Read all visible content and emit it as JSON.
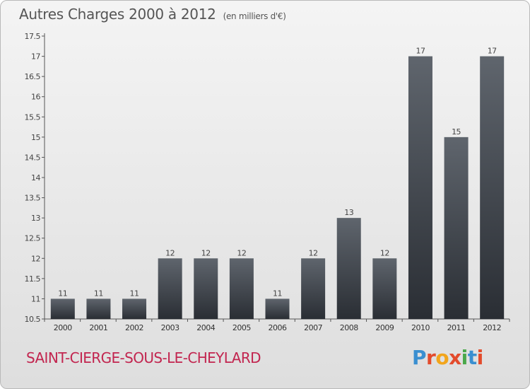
{
  "header": {
    "title": "Autres Charges 2000 à 2012",
    "unit": "(en milliers d'€)"
  },
  "footer": {
    "commune": "SAINT-CIERGE-SOUS-LE-CHEYLARD",
    "logo": "Proxiti"
  },
  "colors": {
    "bar_top": "#5f656d",
    "bar_bottom": "#2a2e34",
    "commune": "#c2254f",
    "logo_letters": [
      "#3a8fd0",
      "#e34b2c",
      "#f2a51c",
      "#e34b2c",
      "#4aa84a",
      "#3a8fd0",
      "#e34b2c"
    ]
  },
  "chart_data": {
    "type": "bar",
    "categories": [
      "2000",
      "2001",
      "2002",
      "2003",
      "2004",
      "2005",
      "2006",
      "2007",
      "2008",
      "2009",
      "2010",
      "2011",
      "2012"
    ],
    "values": [
      11,
      11,
      11,
      12,
      12,
      12,
      11,
      12,
      13,
      12,
      17,
      15,
      17
    ],
    "data_labels": [
      "11",
      "11",
      "11",
      "12",
      "12",
      "12",
      "11",
      "12",
      "13",
      "12",
      "17",
      "15",
      "17"
    ],
    "yticks": [
      "10.5",
      "11",
      "11.5",
      "12",
      "12.5",
      "13",
      "13.5",
      "14",
      "14.5",
      "15",
      "15.5",
      "16",
      "16.5",
      "17",
      "17.5"
    ],
    "ylim": [
      10.5,
      17.5
    ],
    "grid": false,
    "title": "Autres Charges 2000 à 2012",
    "xlabel": "",
    "ylabel": ""
  }
}
